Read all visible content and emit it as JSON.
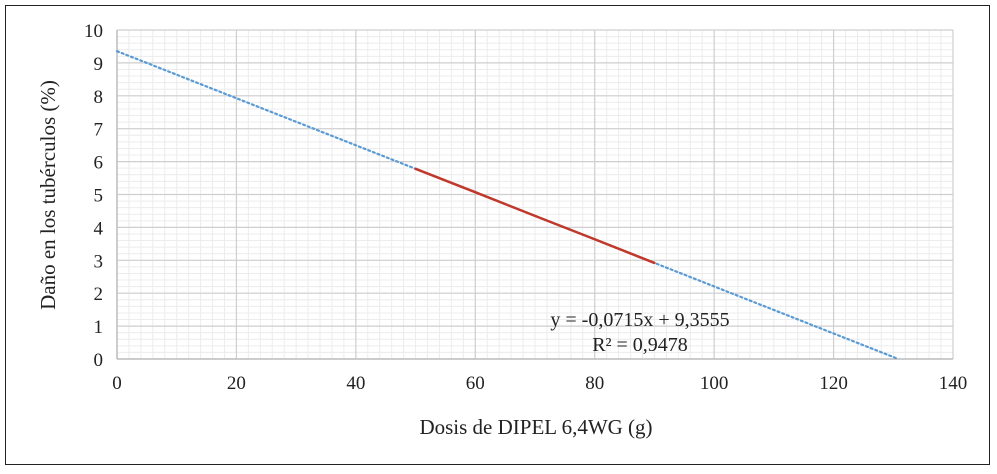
{
  "chart_data": {
    "type": "line",
    "xlabel": "Dosis de DIPEL 6,4WG (g)",
    "ylabel": "Daño en los tubérculos (%)",
    "xlim": [
      0,
      140
    ],
    "ylim": [
      0,
      10
    ],
    "x_ticks": [
      "0",
      "20",
      "40",
      "60",
      "80",
      "100",
      "120",
      "140"
    ],
    "y_ticks": [
      "0",
      "1",
      "2",
      "3",
      "4",
      "5",
      "6",
      "7",
      "8",
      "9",
      "10"
    ],
    "grid": true,
    "minor_grid": true,
    "series": [
      {
        "x": [
          50,
          60,
          70,
          80,
          90
        ],
        "y": [
          5.78,
          5.07,
          4.35,
          3.64,
          2.92
        ],
        "color": "#c0392b",
        "style": "solid"
      }
    ],
    "trendline": {
      "slope": -0.0715,
      "intercept": 9.3555,
      "x_range": [
        0,
        130.85
      ],
      "color": "#5b9bd5",
      "style": "dotted"
    },
    "annotations": {
      "equation": "y = -0,0715x + 9,3555",
      "r_squared": "R² = 0,9478"
    }
  }
}
